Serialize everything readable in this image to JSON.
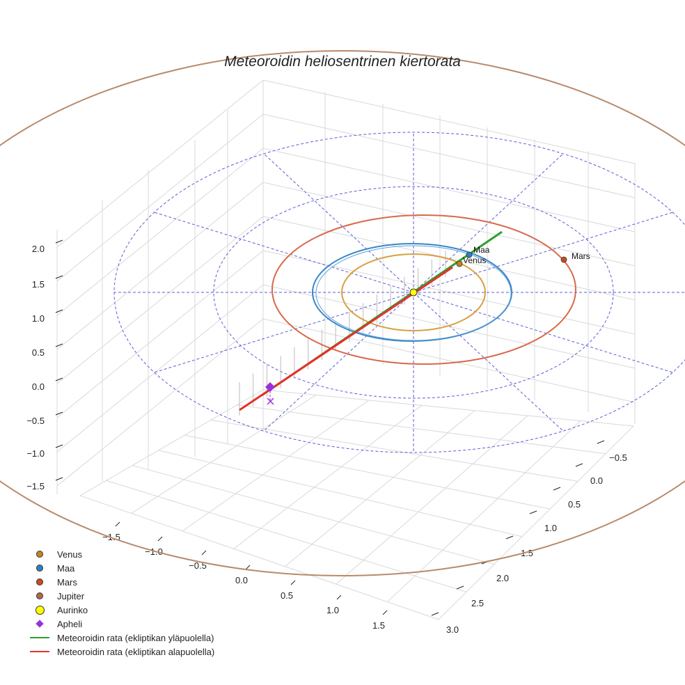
{
  "chart_data": {
    "type": "3d-orbit",
    "title": "Meteoroidin heliosentrinen kiertorata",
    "axes": {
      "x_ticks": [
        "−1.5",
        "−1.0",
        "−0.5",
        "0.0",
        "0.5",
        "1.0",
        "1.5"
      ],
      "y_ticks": [
        "−0.5",
        "0.0",
        "0.5",
        "1.0",
        "1.5",
        "2.0",
        "2.5",
        "3.0"
      ],
      "z_ticks": [
        "2.0",
        "1.5",
        "1.0",
        "0.5",
        "0.0",
        "−0.5",
        "−1.0",
        "−1.5"
      ]
    },
    "orbits": [
      {
        "name": "Venus",
        "radius_au": 0.72,
        "color": "#d9a040"
      },
      {
        "name": "Maa",
        "radius_au": 1.0,
        "color": "#3b86c8"
      },
      {
        "name": "Mars",
        "radius_au": 1.52,
        "color": "#d9684a"
      },
      {
        "name": "Jupiter",
        "radius_au": 5.2,
        "color": "#b88a6a"
      }
    ],
    "planet_labels": [
      "Maa",
      "Venus",
      "Mars"
    ],
    "sun": {
      "name": "Aurinko",
      "color": "#ffff00"
    },
    "aphelion": {
      "name": "Apheli",
      "color": "#9b30d9"
    },
    "meteoroid": {
      "above_ecliptic_color": "#2ca02c",
      "below_ecliptic_color": "#e8302a"
    }
  },
  "legend": [
    {
      "label": "Venus",
      "kind": "dot",
      "color": "#c8821f"
    },
    {
      "label": "Maa",
      "kind": "dot",
      "color": "#2f7fc1"
    },
    {
      "label": "Mars",
      "kind": "dot",
      "color": "#cc4a1c"
    },
    {
      "label": "Jupiter",
      "kind": "dot",
      "color": "#b06a45"
    },
    {
      "label": "Aurinko",
      "kind": "sun",
      "color": "#ffff00"
    },
    {
      "label": "Apheli",
      "kind": "diamond",
      "color": "#9b30d9"
    },
    {
      "label": "Meteoroidin rata (ekliptikan yläpuolella)",
      "kind": "line",
      "color": "#2ca02c"
    },
    {
      "label": "Meteoroidin rata (ekliptikan alapuolella)",
      "kind": "line",
      "color": "#e8302a"
    }
  ]
}
